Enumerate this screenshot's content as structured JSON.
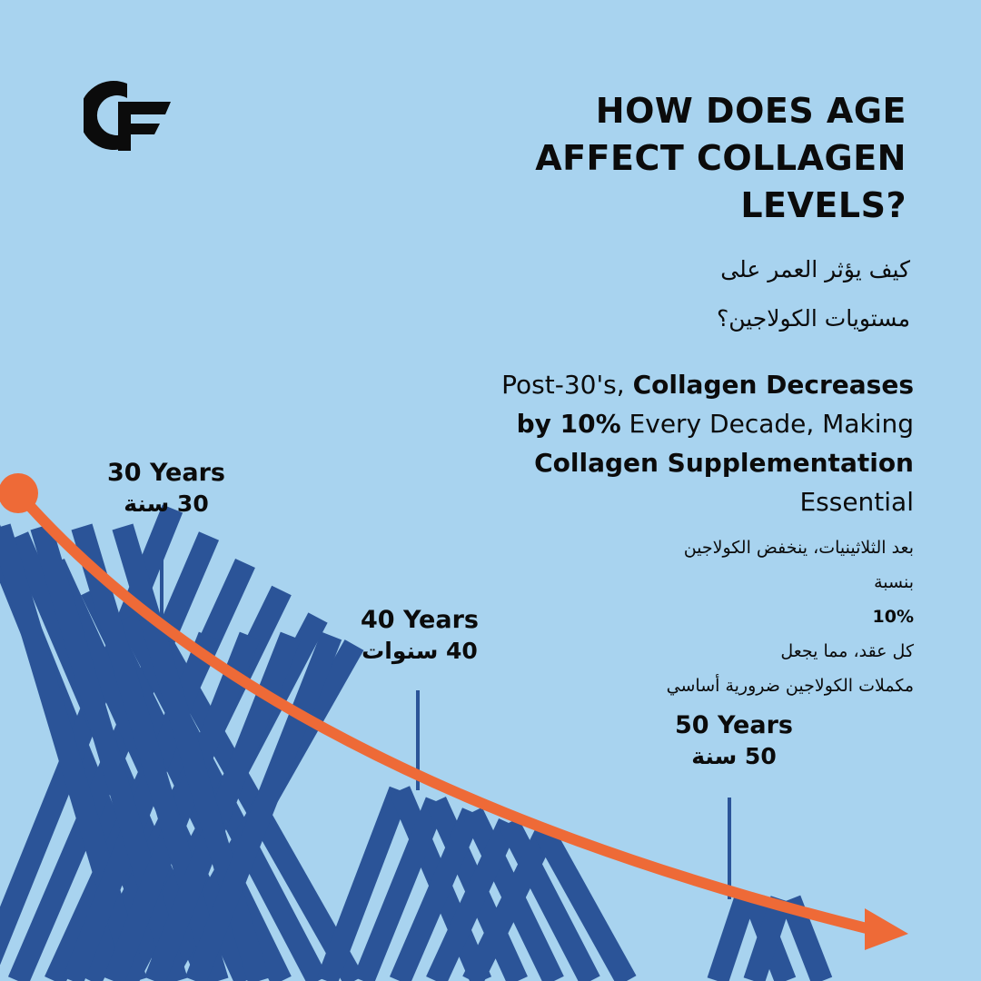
{
  "headline": [
    "HOW DOES AGE",
    "AFFECT COLLAGEN",
    "LEVELS?"
  ],
  "arabic_title": [
    "كيف يؤثر العمر على",
    "مستويات الكولاجين؟"
  ],
  "tagline": {
    "part1": "Post-30's, ",
    "part2": "Collagen Decreases",
    "part3": "by 10%",
    "part4": " Every Decade, Making",
    "part5": "Collagen Supplementation",
    "part6": "Essential"
  },
  "arabic_tagline": {
    "line1": "بعد الثلاثينيات، ينخفض الكولاجين",
    "line2_pre": "بنسبة ",
    "line2_bold": "10%",
    "line2_post": " كل عقد، مما يجعل",
    "line3": "مكملات الكولاجين ضرورية أساسي"
  },
  "ages": [
    {
      "en": "30 Years",
      "ar": "30 سنة"
    },
    {
      "en": "40 Years",
      "ar": "40 سنوات"
    },
    {
      "en": "50 Years",
      "ar": "50 سنة"
    }
  ],
  "colors": {
    "background": "#a8d3ef",
    "stripes": "#2b5498",
    "curve": "#ee6a37",
    "text": "#0b0b0b"
  },
  "logo_icon": "cf-logo-icon"
}
